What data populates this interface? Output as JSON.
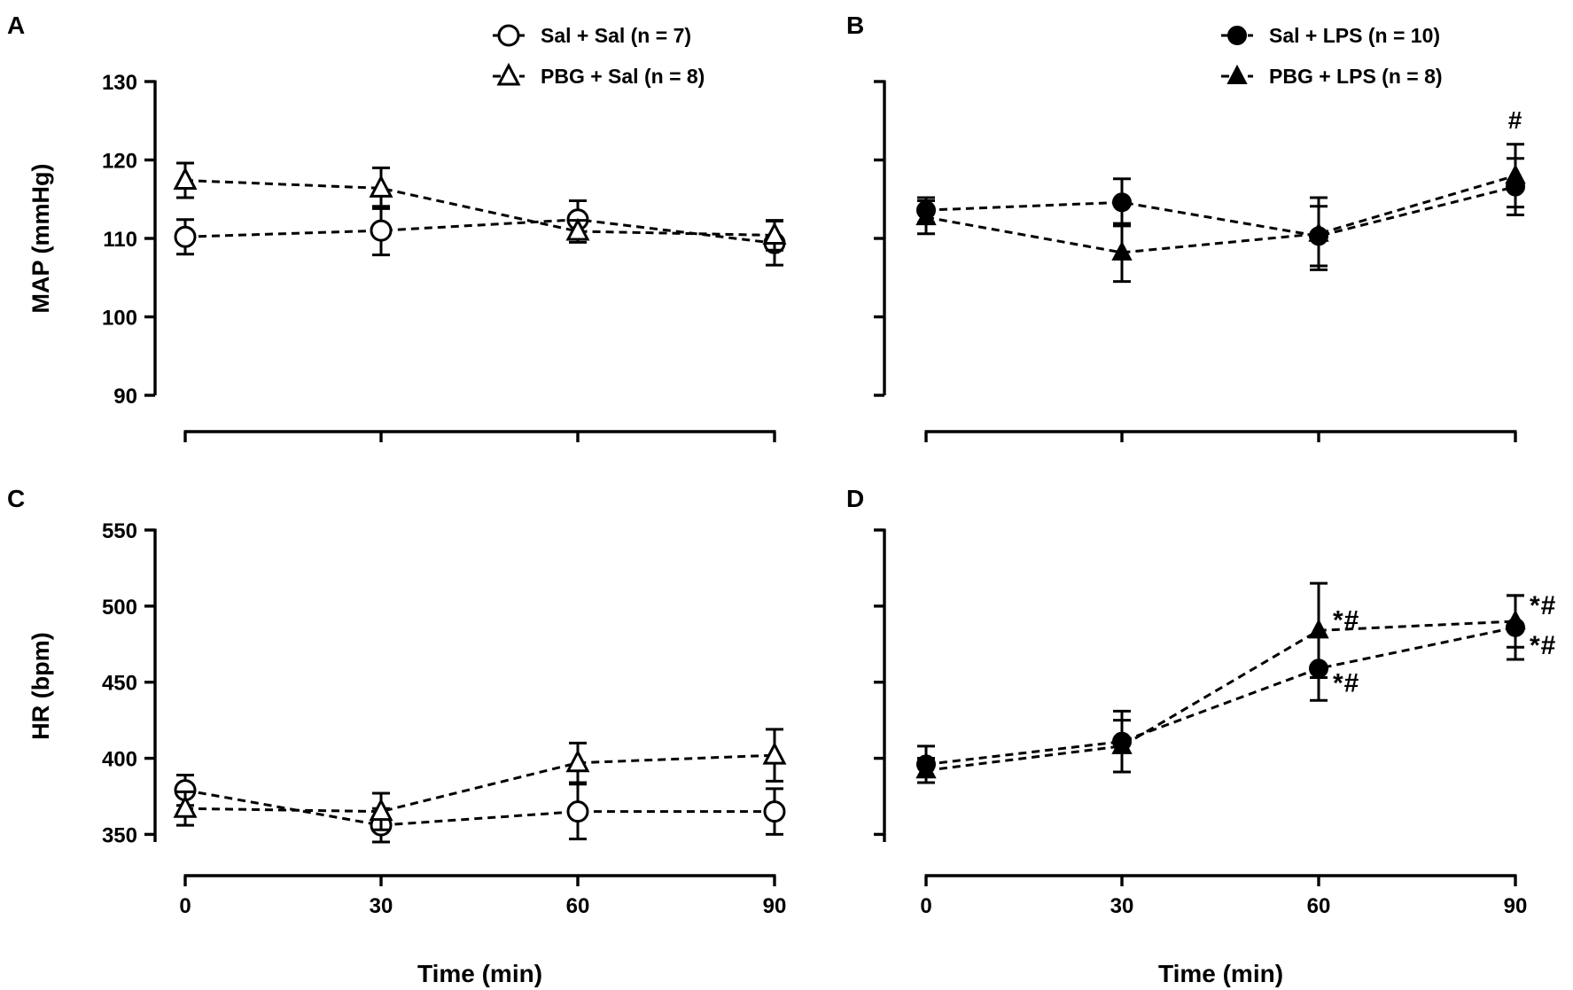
{
  "chart_data": [
    {
      "panel": "A",
      "type": "line",
      "x": [
        0,
        30,
        60,
        90
      ],
      "xticks": [
        "0",
        "30",
        "60",
        "90"
      ],
      "ylabel": "MAP (mmHg)",
      "xlabel": "",
      "ylim": [
        90,
        130
      ],
      "yticks": [
        "90",
        "100",
        "110",
        "120",
        "130"
      ],
      "legend_position": "top-right",
      "series": [
        {
          "name": "Sal + Sal (n = 7)",
          "marker": "circle-open",
          "values": [
            110.2,
            111.0,
            112.4,
            109.4
          ],
          "errors": [
            2.2,
            3.1,
            2.4,
            2.8
          ]
        },
        {
          "name": "PBG + Sal (n = 8)",
          "marker": "triangle-open",
          "values": [
            117.4,
            116.4,
            110.9,
            110.4
          ],
          "errors": [
            2.2,
            2.6,
            1.4,
            1.9
          ]
        }
      ],
      "annotations": []
    },
    {
      "panel": "B",
      "type": "line",
      "x": [
        0,
        30,
        60,
        90
      ],
      "xticks": [
        "0",
        "30",
        "60",
        "90"
      ],
      "ylabel": "",
      "xlabel": "",
      "ylim": [
        90,
        130
      ],
      "yticks": [],
      "legend_position": "top-right",
      "series": [
        {
          "name": "Sal + LPS (n = 10)",
          "marker": "circle-filled",
          "values": [
            113.6,
            114.6,
            110.3,
            116.6
          ],
          "errors": [
            1.6,
            3.0,
            3.8,
            3.6
          ]
        },
        {
          "name": "PBG + LPS (n = 8)",
          "marker": "triangle-filled",
          "values": [
            112.7,
            108.2,
            110.6,
            118.0
          ],
          "errors": [
            2.1,
            3.7,
            4.6,
            4.0
          ]
        }
      ],
      "annotations": [
        {
          "x": 90,
          "text": "#",
          "placement": "above"
        }
      ]
    },
    {
      "panel": "C",
      "type": "line",
      "x": [
        0,
        30,
        60,
        90
      ],
      "xticks": [
        "0",
        "30",
        "60",
        "90"
      ],
      "ylabel": "HR (bpm)",
      "xlabel": "Time (min)",
      "ylim": [
        350,
        550
      ],
      "ymin_axis": 345,
      "yticks": [
        "350",
        "400",
        "450",
        "500",
        "550"
      ],
      "legend_position": "none",
      "series": [
        {
          "name": "Sal + Sal (n = 7)",
          "marker": "circle-open",
          "values": [
            379,
            356,
            365,
            365
          ],
          "errors": [
            10,
            11,
            18,
            15
          ]
        },
        {
          "name": "PBG + Sal (n = 8)",
          "marker": "triangle-open",
          "values": [
            367,
            365,
            397,
            402
          ],
          "errors": [
            11,
            12,
            13,
            17
          ]
        }
      ],
      "annotations": []
    },
    {
      "panel": "D",
      "type": "line",
      "x": [
        0,
        30,
        60,
        90
      ],
      "xticks": [
        "0",
        "30",
        "60",
        "90"
      ],
      "ylabel": "",
      "xlabel": "Time (min)",
      "ylim": [
        350,
        550
      ],
      "ymin_axis": 345,
      "yticks": [],
      "legend_position": "none",
      "series": [
        {
          "name": "Sal + LPS (n = 10)",
          "marker": "circle-filled",
          "values": [
            396,
            411,
            459,
            486
          ],
          "errors": [
            12,
            20,
            21,
            21
          ]
        },
        {
          "name": "PBG + LPS (n = 8)",
          "marker": "triangle-filled",
          "values": [
            392,
            408,
            484,
            490
          ],
          "errors": [
            8,
            17,
            31,
            17
          ]
        }
      ],
      "annotations": [
        {
          "x": 60,
          "text": "*#",
          "placement": "upper-right"
        },
        {
          "x": 60,
          "text": "*#",
          "placement": "lower-right"
        },
        {
          "x": 90,
          "text": "*#",
          "placement": "upper-right"
        },
        {
          "x": 90,
          "text": "*#",
          "placement": "lower-right"
        }
      ]
    }
  ]
}
